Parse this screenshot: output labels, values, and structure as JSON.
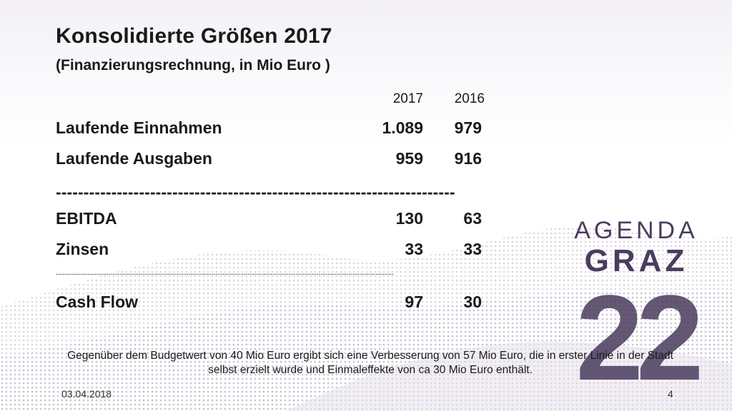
{
  "slide": {
    "title": "Konsolidierte Größen 2017",
    "subtitle": "(Finanzierungsrechnung, in Mio Euro )",
    "year_columns": [
      "2017",
      "2016"
    ],
    "rows": [
      {
        "label": "Laufende Einnahmen",
        "v2017": "1.089",
        "v2016": "979"
      },
      {
        "label": "Laufende Ausgaben",
        "v2017": "959",
        "v2016": "916"
      },
      {
        "label": "EBITDA",
        "v2017": "130",
        "v2016": "63"
      },
      {
        "label": "Zinsen",
        "v2017": "33",
        "v2016": "33"
      },
      {
        "label": "Cash Flow",
        "v2017": "97",
        "v2016": "30"
      }
    ],
    "separator_big": "------------------------------------------------------------------------",
    "separator_small": "----------------------------------------------------------------------------------------------------------------------------------------------------",
    "note": "Gegenüber dem Budgetwert von 40 Mio Euro ergibt sich eine Verbesserung von 57 Mio Euro, die in erster Linie in der Stadt selbst erzielt wurde und Einmaleffekte von ca 30 Mio Euro enthält.",
    "date": "03.04.2018",
    "page_number": "4"
  },
  "logo": {
    "line1": "AGENDA",
    "line2": "GRAZ",
    "number": "22",
    "color": "#4a3c5e"
  },
  "colors": {
    "wave": "#cfc8d8",
    "text": "#1a1a1a"
  }
}
